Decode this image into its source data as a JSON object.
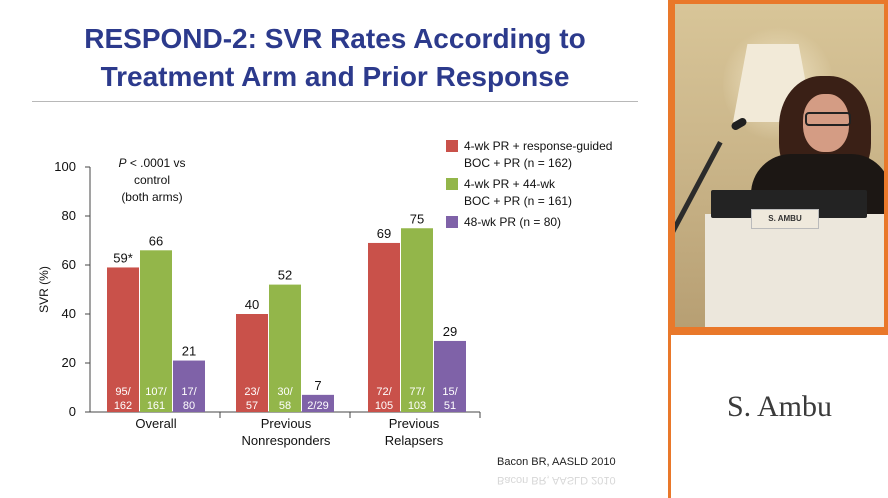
{
  "slide": {
    "title_line1": "RESPOND-2: SVR Rates According to",
    "title_line2": "Treatment Arm and Prior Response",
    "citation": "Bacon BR, AASLD 2010"
  },
  "chart_data": {
    "type": "bar",
    "title": "RESPOND-2: SVR Rates According to Treatment Arm and Prior Response",
    "xlabel": "",
    "ylabel": "SVR (%)",
    "ylim": [
      0,
      100
    ],
    "yticks": [
      0,
      20,
      40,
      60,
      80,
      100
    ],
    "grid": false,
    "legend_position": "top-right",
    "categories": [
      [
        "Overall"
      ],
      [
        "Previous",
        "Nonresponders"
      ],
      [
        "Previous",
        "Relapsers"
      ]
    ],
    "series": [
      {
        "name": "4-wk PR + response-guided BOC + PR (n = 162)",
        "legend_lines": [
          "4-wk PR + response-guided",
          "BOC + PR (n = 162)"
        ],
        "color": "#c9514a",
        "values": [
          59,
          40,
          69
        ],
        "value_labels": [
          "59*",
          "40",
          "69"
        ],
        "fraction_labels": [
          [
            "95/",
            "162"
          ],
          [
            "23/",
            "57"
          ],
          [
            "72/",
            "105"
          ]
        ]
      },
      {
        "name": "4-wk PR + 44-wk BOC + PR (n = 161)",
        "legend_lines": [
          "4-wk PR + 44-wk",
          "BOC + PR (n = 161)"
        ],
        "color": "#93b64a",
        "values": [
          66,
          52,
          75
        ],
        "value_labels": [
          "66",
          "52",
          "75"
        ],
        "fraction_labels": [
          [
            "107/",
            "161"
          ],
          [
            "30/",
            "58"
          ],
          [
            "77/",
            "103"
          ]
        ]
      },
      {
        "name": "48-wk PR (n = 80)",
        "legend_lines": [
          "48-wk PR (n = 80)"
        ],
        "color": "#7f62a8",
        "values": [
          21,
          7,
          29
        ],
        "value_labels": [
          "21",
          "7",
          "29"
        ],
        "fraction_labels": [
          [
            "17/",
            "80"
          ],
          [
            "2/29"
          ],
          [
            "15/",
            "51"
          ]
        ]
      }
    ],
    "annotation": {
      "p_italic": "P",
      "p_rest": " < .0001 vs",
      "line2": "control",
      "line3": "(both arms)"
    }
  },
  "video": {
    "name_plate": "S. AMBU"
  },
  "speaker": {
    "name": "S. Ambu"
  },
  "colors": {
    "title": "#2c3a8c",
    "frame": "#e9782a"
  }
}
